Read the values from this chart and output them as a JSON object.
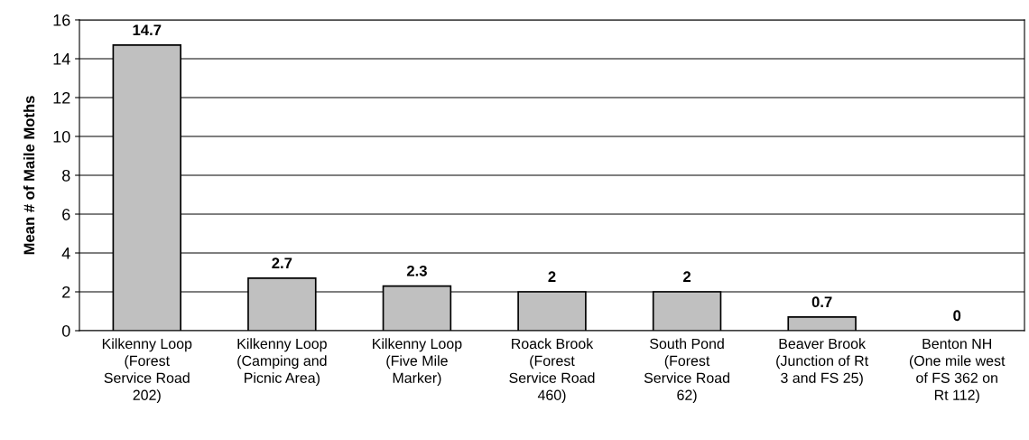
{
  "chart_data": {
    "type": "bar",
    "ylabel": "Mean # of Maile Moths",
    "categories": [
      "Kilkenny Loop\n(Forest\nService Road\n202)",
      "Kilkenny Loop\n(Camping and\nPicnic Area)",
      "Kilkenny Loop\n(Five Mile\nMarker)",
      "Roack Brook\n(Forest\nService Road\n460)",
      "South Pond\n(Forest\nService Road\n62)",
      "Beaver Brook\n(Junction of Rt\n3 and FS 25)",
      "Benton NH\n(One mile west\nof FS 362 on\nRt 112)"
    ],
    "values": [
      14.7,
      2.7,
      2.3,
      2,
      2,
      0.7,
      0
    ],
    "color": "#c0c0c0",
    "ylim": [
      0,
      16
    ],
    "yticks": [
      0,
      2,
      4,
      6,
      8,
      10,
      12,
      14,
      16
    ],
    "grid": "y",
    "data_labels": true,
    "legend": false
  }
}
